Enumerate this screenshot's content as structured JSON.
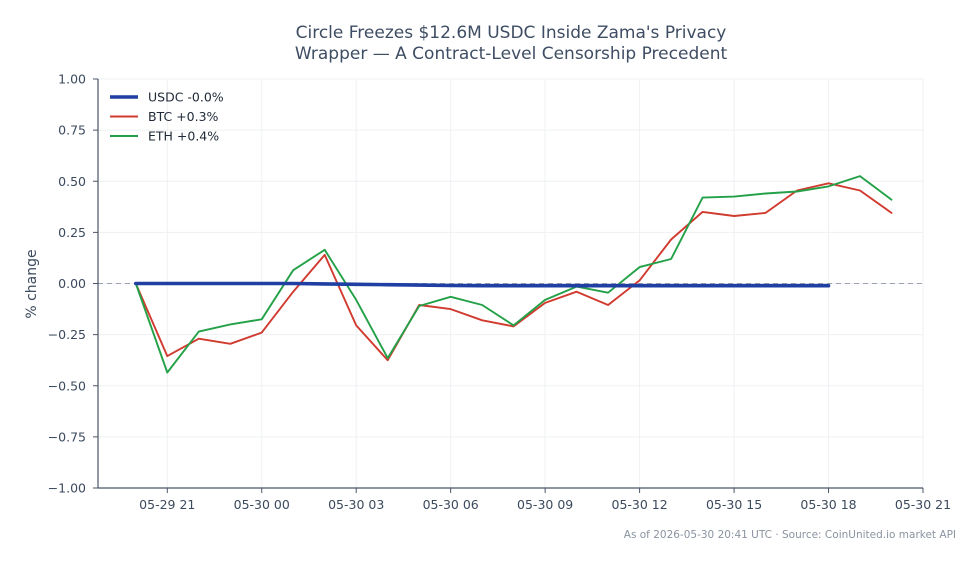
{
  "chart_data": {
    "type": "line",
    "title_lines": [
      "Circle Freezes $12.6M USDC Inside Zama's Privacy",
      "Wrapper — A Contract-Level Censorship Precedent"
    ],
    "xlabel": "",
    "ylabel": "% change",
    "x_ticks": [
      "05-29 21",
      "05-30 00",
      "05-30 03",
      "05-30 06",
      "05-30 09",
      "05-30 12",
      "05-30 15",
      "05-30 18",
      "05-30 21"
    ],
    "x_tick_hours": [
      0,
      3,
      6,
      9,
      12,
      15,
      18,
      21,
      24
    ],
    "xlim_hours": [
      -2.2,
      24
    ],
    "y_ticks": [
      "1.00",
      "0.75",
      "0.50",
      "0.25",
      "0.00",
      "−0.25",
      "−0.50",
      "−0.75",
      "−1.00"
    ],
    "y_tick_values": [
      1,
      0.75,
      0.5,
      0.25,
      0,
      -0.25,
      -0.5,
      -0.75,
      -1
    ],
    "ylim": [
      -1,
      1
    ],
    "grid": true,
    "zero_line": true,
    "legend_position": "top-left",
    "series": [
      {
        "name": "USDC -0.0%",
        "color": "#1f3fa3",
        "x": [
          -1,
          0,
          1,
          2,
          3,
          4,
          5,
          6,
          7,
          8,
          9,
          10,
          11,
          12,
          13,
          14,
          15,
          16,
          17,
          18,
          19,
          20,
          21
        ],
        "values": [
          0.0,
          0.0,
          0.0,
          0.0,
          0.0,
          0.0,
          -0.002,
          -0.004,
          -0.006,
          -0.008,
          -0.01,
          -0.011,
          -0.011,
          -0.011,
          -0.011,
          -0.011,
          -0.011,
          -0.011,
          -0.011,
          -0.011,
          -0.011,
          -0.011,
          -0.011
        ]
      },
      {
        "name": "BTC +0.3%",
        "color": "#d13a2e",
        "x": [
          -1,
          0,
          1,
          2,
          3,
          4,
          5,
          6,
          7,
          8,
          9,
          10,
          11,
          12,
          13,
          14,
          15,
          16,
          17,
          18,
          19,
          20,
          21,
          22,
          23
        ],
        "values": [
          0.0,
          -0.355,
          -0.27,
          -0.295,
          -0.24,
          -0.04,
          0.14,
          -0.205,
          -0.375,
          -0.105,
          -0.125,
          -0.18,
          -0.21,
          -0.095,
          -0.04,
          -0.105,
          0.015,
          0.215,
          0.35,
          0.33,
          0.345,
          0.455,
          0.49,
          0.455,
          0.345
        ]
      },
      {
        "name": "ETH +0.4%",
        "color": "#24a148",
        "x": [
          -1,
          0,
          1,
          2,
          3,
          4,
          5,
          6,
          7,
          8,
          9,
          10,
          11,
          12,
          13,
          14,
          15,
          16,
          17,
          18,
          19,
          20,
          21,
          22,
          23
        ],
        "values": [
          0.0,
          -0.435,
          -0.235,
          -0.2,
          -0.175,
          0.065,
          0.165,
          -0.08,
          -0.365,
          -0.11,
          -0.065,
          -0.105,
          -0.205,
          -0.08,
          -0.015,
          -0.045,
          0.08,
          0.12,
          0.42,
          0.425,
          0.44,
          0.45,
          0.475,
          0.525,
          0.41
        ]
      }
    ],
    "footer": "As of 2026-05-30 20:41 UTC · Source: CoinUnited.io market API"
  }
}
